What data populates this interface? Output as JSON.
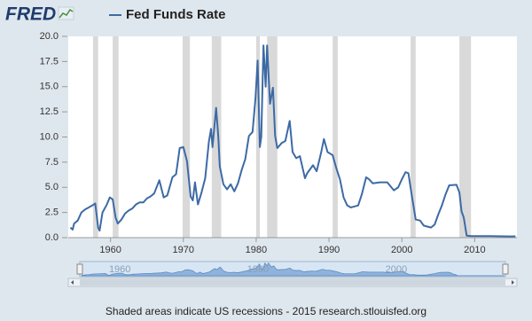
{
  "logo": "FRED",
  "footer": "Shaded areas indicate US recessions - 2015 research.stlouisfed.org",
  "chart_data": {
    "type": "line",
    "x": [
      1954.5,
      1954.8,
      1955.0,
      1955.5,
      1956.0,
      1956.5,
      1957.0,
      1957.5,
      1957.9,
      1958.3,
      1958.5,
      1958.9,
      1959.5,
      1959.9,
      1960.3,
      1960.7,
      1961.0,
      1961.5,
      1962.0,
      1962.5,
      1963.0,
      1963.5,
      1964.0,
      1964.5,
      1965.0,
      1965.5,
      1966.0,
      1966.7,
      1967.3,
      1967.8,
      1968.5,
      1969.0,
      1969.5,
      1970.0,
      1970.5,
      1971.0,
      1971.3,
      1971.6,
      1972.0,
      1972.5,
      1973.0,
      1973.5,
      1973.8,
      1974.0,
      1974.5,
      1974.8,
      1975.0,
      1975.5,
      1976.0,
      1976.5,
      1977.0,
      1977.5,
      1978.0,
      1978.5,
      1979.0,
      1979.5,
      1979.9,
      1980.2,
      1980.5,
      1980.7,
      1981.0,
      1981.3,
      1981.5,
      1981.9,
      1982.3,
      1982.6,
      1982.9,
      1983.5,
      1984.0,
      1984.6,
      1985.0,
      1985.5,
      1986.0,
      1986.7,
      1987.0,
      1987.8,
      1988.3,
      1988.9,
      1989.3,
      1989.8,
      1990.5,
      1991.0,
      1991.5,
      1992.0,
      1992.5,
      1993.0,
      1994.0,
      1994.5,
      1995.1,
      1995.5,
      1996.0,
      1997.0,
      1998.0,
      1998.9,
      1999.5,
      2000.0,
      2000.5,
      2000.9,
      2001.3,
      2001.9,
      2002.5,
      2003.0,
      2004.0,
      2004.5,
      2005.0,
      2005.5,
      2006.0,
      2006.5,
      2007.5,
      2007.9,
      2008.2,
      2008.5,
      2008.9,
      2009.5,
      2012.0,
      2015.0,
      2015.6
    ],
    "series": [
      {
        "name": "Fed Funds Rate",
        "color": "#3d6aa5",
        "values": [
          1.0,
          0.8,
          1.4,
          1.7,
          2.5,
          2.8,
          3.0,
          3.2,
          3.4,
          1.0,
          0.7,
          2.5,
          3.3,
          4.0,
          3.8,
          2.0,
          1.4,
          1.8,
          2.4,
          2.7,
          2.9,
          3.3,
          3.5,
          3.5,
          3.9,
          4.1,
          4.4,
          5.7,
          4.0,
          4.2,
          6.0,
          6.3,
          8.9,
          9.0,
          7.6,
          4.1,
          3.7,
          5.5,
          3.3,
          4.5,
          5.9,
          9.5,
          10.8,
          9.0,
          12.9,
          10.0,
          7.1,
          5.3,
          4.8,
          5.3,
          4.6,
          5.4,
          6.7,
          7.8,
          10.1,
          10.5,
          13.8,
          17.6,
          9.0,
          10.0,
          19.1,
          15.0,
          19.1,
          13.3,
          14.9,
          10.1,
          8.9,
          9.4,
          9.6,
          11.6,
          8.5,
          7.9,
          8.1,
          5.9,
          6.4,
          7.2,
          6.6,
          8.4,
          9.8,
          8.5,
          8.2,
          6.9,
          5.8,
          4.0,
          3.2,
          3.0,
          3.2,
          4.3,
          6.0,
          5.8,
          5.4,
          5.5,
          5.5,
          4.7,
          5.0,
          5.8,
          6.5,
          6.4,
          4.5,
          1.8,
          1.7,
          1.2,
          1.0,
          1.3,
          2.3,
          3.2,
          4.3,
          5.2,
          5.25,
          4.5,
          2.6,
          2.0,
          0.2,
          0.15,
          0.15,
          0.12,
          0.13
        ]
      }
    ],
    "recessions": [
      [
        1957.6,
        1958.3
      ],
      [
        1960.3,
        1961.1
      ],
      [
        1969.9,
        1970.9
      ],
      [
        1973.9,
        1975.2
      ],
      [
        1980.0,
        1980.5
      ],
      [
        1981.5,
        1982.9
      ],
      [
        1990.5,
        1991.2
      ],
      [
        2001.2,
        2001.9
      ],
      [
        2007.9,
        2009.5
      ]
    ],
    "recession_color": "#d9d9d9",
    "xlim": [
      1954.2,
      2015.8
    ],
    "xticks": [
      1960,
      1970,
      1980,
      1990,
      2000,
      2010
    ],
    "ylim": [
      0,
      20
    ],
    "yticks": [
      {
        "value": 0,
        "label": "0.0"
      },
      2.5,
      {
        "value": 5,
        "label": "5.0"
      },
      7.5,
      {
        "value": 10,
        "label": "10.0"
      },
      12.5,
      {
        "value": 15,
        "label": "15.0"
      },
      17.5,
      {
        "value": 20,
        "label": "20.0"
      }
    ],
    "navigator_xticks": [
      1960,
      1980,
      2000
    ]
  }
}
